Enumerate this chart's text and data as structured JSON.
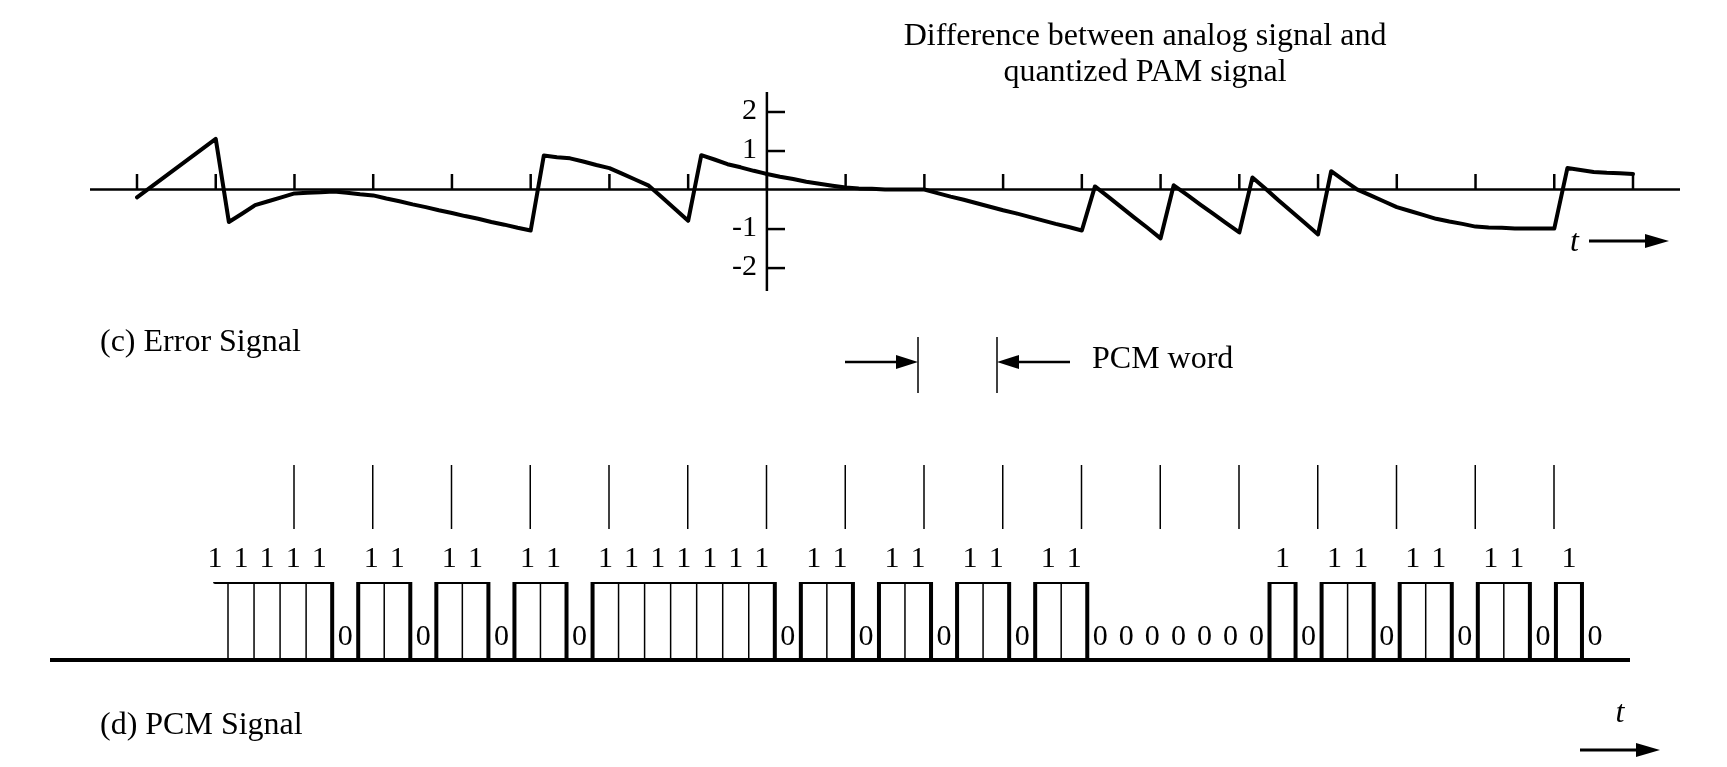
{
  "chart_data": [
    {
      "type": "line",
      "title": "Difference between analog signal and quantized PAM signal",
      "xlabel": "t",
      "annotations": [
        "(c) Error Signal"
      ],
      "categories": [
        null,
        null,
        null,
        null,
        null,
        null,
        null,
        null,
        null,
        null,
        null,
        null,
        null,
        null,
        null,
        null,
        null,
        null,
        null,
        null,
        null,
        null,
        null,
        null,
        null,
        null,
        null,
        null,
        null,
        null,
        null,
        null,
        null,
        null,
        null,
        null,
        null,
        null,
        null,
        null,
        null,
        null,
        null,
        null,
        null,
        null,
        null,
        null,
        null,
        null,
        null,
        null,
        null,
        null,
        null,
        null,
        null,
        null,
        null,
        null,
        null,
        null,
        null,
        null,
        null,
        null,
        null,
        null,
        null,
        null,
        null,
        null,
        null,
        null,
        null,
        null,
        null,
        null,
        null,
        null,
        null,
        null,
        null,
        null,
        null,
        null,
        null,
        null,
        null,
        null,
        null,
        null,
        null,
        null,
        null,
        null,
        null,
        null,
        null,
        null,
        null,
        null,
        null,
        null,
        null,
        null,
        null,
        null,
        null,
        null,
        null,
        null,
        null,
        null,
        null
      ],
      "series": [
        {
          "color": "#000000",
          "values": [
            -0.2,
            0.05,
            0.3,
            0.55,
            0.8,
            1.05,
            1.3,
            -0.83,
            -0.62,
            -0.4,
            -0.3,
            -0.2,
            -0.1,
            -0.08,
            -0.07,
            -0.05,
            -0.08,
            -0.12,
            -0.15,
            -0.23,
            -0.3,
            -0.38,
            -0.45,
            -0.53,
            -0.6,
            -0.68,
            -0.75,
            -0.83,
            -0.9,
            -0.98,
            -1.05,
            0.87,
            0.83,
            0.8,
            0.72,
            0.63,
            0.55,
            0.4,
            0.25,
            0.1,
            -0.2,
            -0.5,
            -0.8,
            0.88,
            0.77,
            0.65,
            0.57,
            0.48,
            0.4,
            0.33,
            0.27,
            0.2,
            0.15,
            0.1,
            0.05,
            0.03,
            0.02,
            0,
            0,
            0,
            0,
            -0.09,
            -0.18,
            -0.26,
            -0.35,
            -0.44,
            -0.53,
            -0.61,
            -0.7,
            -0.79,
            -0.88,
            -0.96,
            -1.05,
            0.08,
            -0.18,
            -0.45,
            -0.72,
            -0.98,
            -1.25,
            0.11,
            -0.13,
            -0.38,
            -0.62,
            -0.86,
            -1.1,
            0.31,
            0.02,
            -0.28,
            -0.57,
            -0.86,
            -1.15,
            0.47,
            0.23,
            0,
            -0.15,
            -0.3,
            -0.45,
            -0.55,
            -0.65,
            -0.75,
            -0.82,
            -0.88,
            -0.95,
            -0.97,
            -0.98,
            -1.0,
            -1.0,
            -1.0,
            -1.0,
            0.55,
            0.5,
            0.45,
            0.43,
            0.42,
            0.4
          ]
        }
      ],
      "ylim": [
        -2.6,
        2.5
      ],
      "yticks": [
        -2,
        -1,
        1,
        2
      ],
      "tick_labels": "y",
      "marker": "none"
    },
    {
      "type": "step",
      "xlabel": "t",
      "annotations": [
        "PCM word",
        "(d) PCM Signal"
      ],
      "data_labels": true,
      "marker": "none",
      "categories": [
        null,
        null,
        null,
        null,
        null,
        null,
        null,
        null,
        null,
        null,
        null,
        null,
        null,
        null,
        null,
        null,
        null,
        null,
        null,
        null,
        null,
        null,
        null,
        null,
        null,
        null,
        null,
        null,
        null,
        null,
        null,
        null,
        null,
        null,
        null,
        null,
        null,
        null,
        null,
        null,
        null,
        null,
        null,
        null,
        null,
        null,
        null,
        null,
        null,
        null,
        null,
        null,
        null,
        null
      ],
      "series": [
        {
          "color": "#000000",
          "values": [
            1,
            1,
            1,
            1,
            1,
            0,
            1,
            1,
            0,
            1,
            1,
            0,
            1,
            1,
            0,
            1,
            1,
            1,
            1,
            1,
            1,
            1,
            0,
            1,
            1,
            0,
            1,
            1,
            0,
            1,
            1,
            0,
            1,
            1,
            0,
            0,
            0,
            0,
            0,
            0,
            0,
            1,
            0,
            1,
            1,
            0,
            1,
            1,
            0,
            1,
            1,
            0,
            1,
            0
          ]
        }
      ]
    }
  ]
}
